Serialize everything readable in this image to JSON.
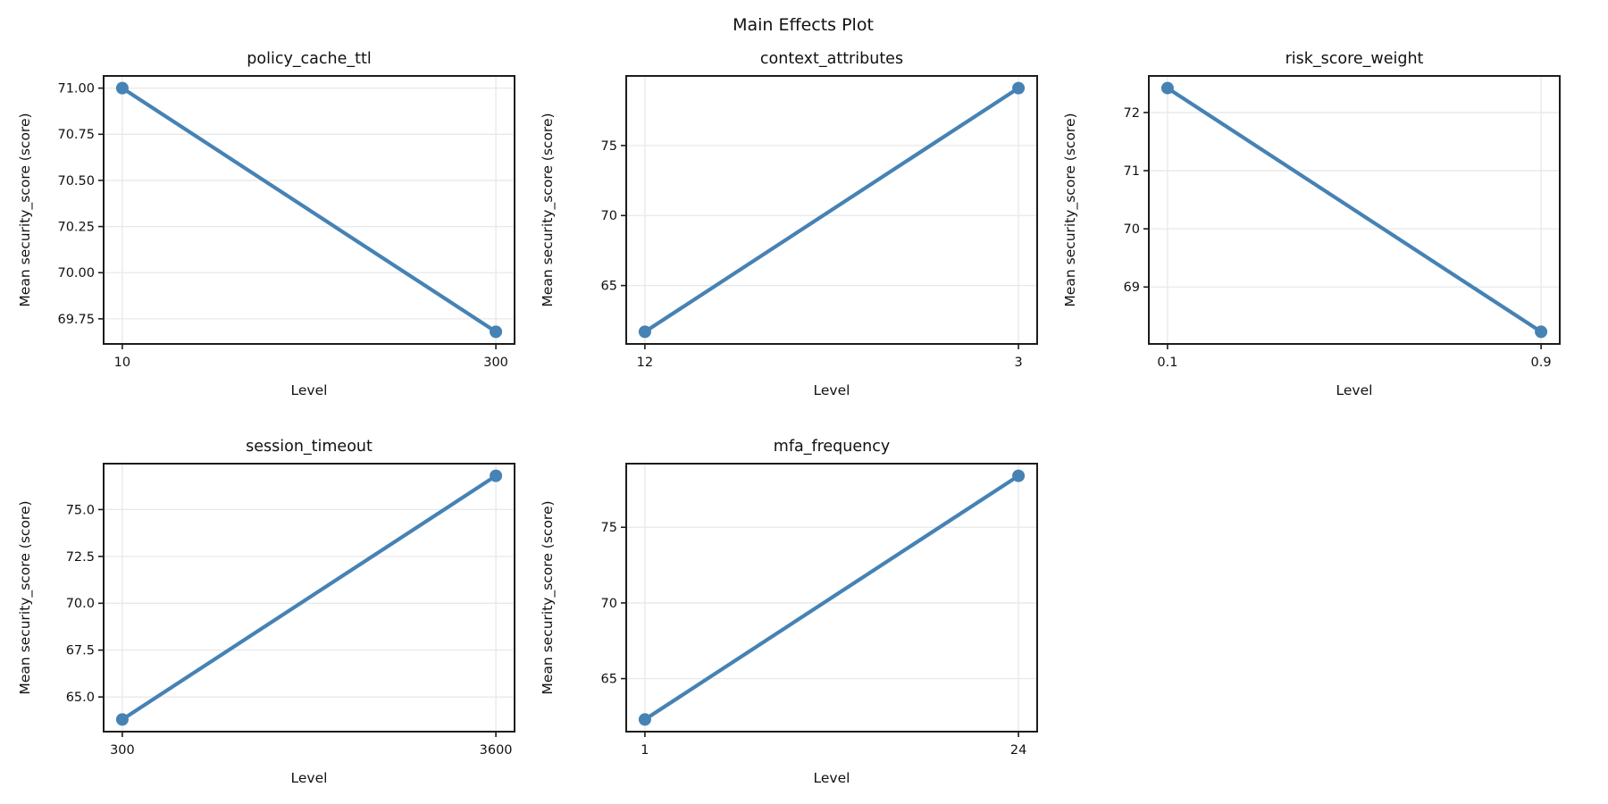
{
  "title": "Main Effects Plot",
  "colors": {
    "line": "#4682b4",
    "grid": "#e8e8e8",
    "spine": "#1c1c1c",
    "text": "#111111",
    "background": "#ffffff"
  },
  "chart_data": [
    {
      "type": "line",
      "title": "policy_cache_ttl",
      "xlabel": "Level",
      "ylabel": "Mean security_score (score)",
      "categories": [
        "10",
        "300"
      ],
      "values": [
        71.0,
        69.68
      ],
      "ytick_values": [
        69.75,
        70.0,
        70.25,
        70.5,
        70.75,
        71.0
      ],
      "ytick_labels": [
        "69.75",
        "70.00",
        "70.25",
        "70.50",
        "70.75",
        "71.00"
      ],
      "ylim": [
        69.614,
        71.066
      ],
      "grid": true,
      "legend": "none"
    },
    {
      "type": "line",
      "title": "context_attributes",
      "xlabel": "Level",
      "ylabel": "Mean security_score (score)",
      "categories": [
        "12",
        "3"
      ],
      "values": [
        61.7,
        79.1
      ],
      "ytick_values": [
        65,
        70,
        75
      ],
      "ytick_labels": [
        "65",
        "70",
        "75"
      ],
      "ylim": [
        60.83,
        79.97
      ],
      "grid": true,
      "legend": "none"
    },
    {
      "type": "line",
      "title": "risk_score_weight",
      "xlabel": "Level",
      "ylabel": "Mean security_score (score)",
      "categories": [
        "0.1",
        "0.9"
      ],
      "values": [
        72.42,
        68.23
      ],
      "ytick_values": [
        69,
        70,
        71,
        72
      ],
      "ytick_labels": [
        "69",
        "70",
        "71",
        "72"
      ],
      "ylim": [
        68.021,
        72.629
      ],
      "grid": true,
      "legend": "none"
    },
    {
      "type": "line",
      "title": "session_timeout",
      "xlabel": "Level",
      "ylabel": "Mean security_score (score)",
      "categories": [
        "300",
        "3600"
      ],
      "values": [
        63.8,
        76.8
      ],
      "ytick_values": [
        65.0,
        67.5,
        70.0,
        72.5,
        75.0
      ],
      "ytick_labels": [
        "65.0",
        "67.5",
        "70.0",
        "72.5",
        "75.0"
      ],
      "ylim": [
        63.15,
        77.45
      ],
      "grid": true,
      "legend": "none"
    },
    {
      "type": "line",
      "title": "mfa_frequency",
      "xlabel": "Level",
      "ylabel": "Mean security_score (score)",
      "categories": [
        "1",
        "24"
      ],
      "values": [
        62.3,
        78.4
      ],
      "ytick_values": [
        65,
        70,
        75
      ],
      "ytick_labels": [
        "65",
        "70",
        "75"
      ],
      "ylim": [
        61.495,
        79.205
      ],
      "grid": true,
      "legend": "none"
    }
  ]
}
